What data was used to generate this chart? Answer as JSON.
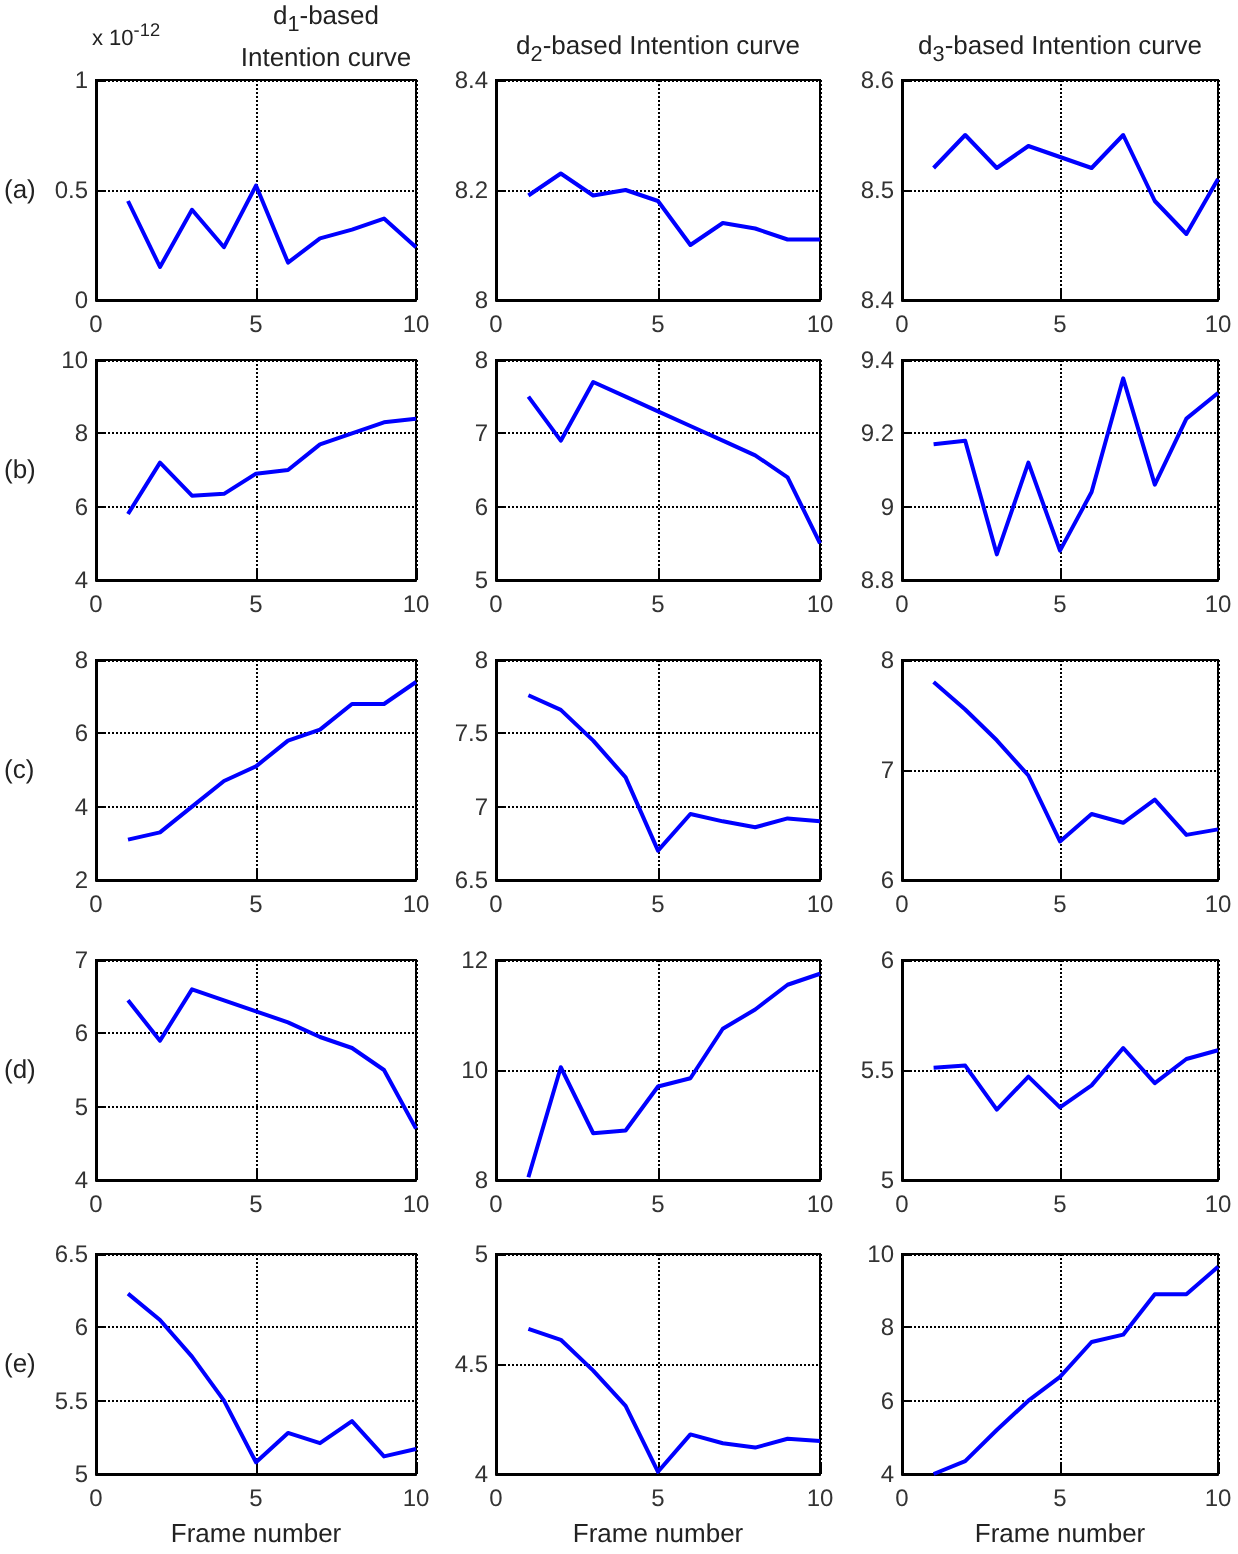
{
  "chart_data": [
    {
      "type": "line",
      "title": "d$_{1}$-based Intention curve",
      "ylabel": "(a)",
      "annotations": [
        "x 10$^{-12}$"
      ],
      "x": [
        1,
        2,
        3,
        4,
        5,
        6,
        7,
        8,
        9,
        10
      ],
      "values": [
        0.45,
        0.15,
        0.41,
        0.24,
        0.52,
        0.17,
        0.28,
        0.32,
        0.37,
        0.24
      ],
      "color": "#0000ff",
      "xlim": [
        0,
        10
      ],
      "xticks": [
        0,
        5,
        10
      ],
      "ylim": [
        0,
        1
      ],
      "yticks": [
        0,
        0.5,
        1
      ],
      "grid": true,
      "marker": "none"
    },
    {
      "type": "line",
      "title": "d$_{2}$-based Intention curve",
      "x": [
        1,
        2,
        3,
        4,
        5,
        6,
        7,
        8,
        9,
        10
      ],
      "values": [
        8.19,
        8.23,
        8.19,
        8.2,
        8.18,
        8.1,
        8.14,
        8.13,
        8.11,
        8.11
      ],
      "color": "#0000ff",
      "xlim": [
        0,
        10
      ],
      "xticks": [
        0,
        5,
        10
      ],
      "ylim": [
        8,
        8.4
      ],
      "yticks": [
        8,
        8.2,
        8.4
      ],
      "grid": true,
      "marker": "none"
    },
    {
      "type": "line",
      "title": "d$_{3}$-based Intention curve",
      "x": [
        1,
        2,
        3,
        4,
        5,
        6,
        7,
        8,
        9,
        10
      ],
      "values": [
        8.52,
        8.55,
        8.52,
        8.54,
        8.53,
        8.52,
        8.55,
        8.49,
        8.46,
        8.51
      ],
      "color": "#0000ff",
      "xlim": [
        0,
        10
      ],
      "xticks": [
        0,
        5,
        10
      ],
      "ylim": [
        8.4,
        8.6
      ],
      "yticks": [
        8.4,
        8.5,
        8.6
      ],
      "grid": true,
      "marker": "none"
    },
    {
      "type": "line",
      "ylabel": "(b)",
      "x": [
        1,
        2,
        3,
        4,
        5,
        6,
        7,
        8,
        9,
        10
      ],
      "values": [
        5.8,
        7.2,
        6.3,
        6.35,
        6.9,
        7.0,
        7.7,
        8.0,
        8.3,
        8.4
      ],
      "color": "#0000ff",
      "xlim": [
        0,
        10
      ],
      "xticks": [
        0,
        5,
        10
      ],
      "ylim": [
        4,
        10
      ],
      "yticks": [
        4,
        6,
        8,
        10
      ],
      "grid": true,
      "marker": "none"
    },
    {
      "type": "line",
      "x": [
        1,
        2,
        3,
        4,
        5,
        6,
        7,
        8,
        9,
        10
      ],
      "values": [
        7.5,
        6.9,
        7.7,
        7.5,
        7.3,
        7.1,
        6.9,
        6.7,
        6.4,
        5.5
      ],
      "color": "#0000ff",
      "xlim": [
        0,
        10
      ],
      "xticks": [
        0,
        5,
        10
      ],
      "ylim": [
        5,
        8
      ],
      "yticks": [
        5,
        6,
        7,
        8
      ],
      "grid": true,
      "marker": "none"
    },
    {
      "type": "line",
      "x": [
        1,
        2,
        3,
        4,
        5,
        6,
        7,
        8,
        9,
        10
      ],
      "values": [
        9.17,
        9.18,
        8.87,
        9.12,
        8.88,
        9.04,
        9.35,
        9.06,
        9.24,
        9.31
      ],
      "color": "#0000ff",
      "xlim": [
        0,
        10
      ],
      "xticks": [
        0,
        5,
        10
      ],
      "ylim": [
        8.8,
        9.4
      ],
      "yticks": [
        8.8,
        9,
        9.2,
        9.4
      ],
      "grid": true,
      "marker": "none"
    },
    {
      "type": "line",
      "ylabel": "(c)",
      "x": [
        1,
        2,
        3,
        4,
        5,
        6,
        7,
        8,
        9,
        10
      ],
      "values": [
        3.1,
        3.3,
        4.0,
        4.7,
        5.1,
        5.8,
        6.1,
        6.8,
        6.8,
        7.4
      ],
      "color": "#0000ff",
      "xlim": [
        0,
        10
      ],
      "xticks": [
        0,
        5,
        10
      ],
      "ylim": [
        2,
        8
      ],
      "yticks": [
        2,
        4,
        6,
        8
      ],
      "grid": true,
      "marker": "none"
    },
    {
      "type": "line",
      "x": [
        1,
        2,
        3,
        4,
        5,
        6,
        7,
        8,
        9,
        10
      ],
      "values": [
        7.76,
        7.66,
        7.45,
        7.2,
        6.7,
        6.95,
        6.9,
        6.86,
        6.92,
        6.9
      ],
      "color": "#0000ff",
      "xlim": [
        0,
        10
      ],
      "xticks": [
        0,
        5,
        10
      ],
      "ylim": [
        6.5,
        8
      ],
      "yticks": [
        6.5,
        7,
        7.5,
        8
      ],
      "grid": true,
      "marker": "none"
    },
    {
      "type": "line",
      "x": [
        1,
        2,
        3,
        4,
        5,
        6,
        7,
        8,
        9,
        10
      ],
      "values": [
        7.8,
        7.55,
        7.27,
        6.95,
        6.35,
        6.6,
        6.52,
        6.73,
        6.41,
        6.46
      ],
      "color": "#0000ff",
      "xlim": [
        0,
        10
      ],
      "xticks": [
        0,
        5,
        10
      ],
      "ylim": [
        6,
        8
      ],
      "yticks": [
        6,
        7,
        8
      ],
      "grid": true,
      "marker": "none"
    },
    {
      "type": "line",
      "ylabel": "(d)",
      "x": [
        1,
        2,
        3,
        4,
        5,
        6,
        7,
        8,
        9,
        10
      ],
      "values": [
        6.45,
        5.9,
        6.6,
        6.45,
        6.3,
        6.15,
        5.95,
        5.8,
        5.5,
        4.7
      ],
      "color": "#0000ff",
      "xlim": [
        0,
        10
      ],
      "xticks": [
        0,
        5,
        10
      ],
      "ylim": [
        4,
        7
      ],
      "yticks": [
        4,
        5,
        6,
        7
      ],
      "grid": true,
      "marker": "none"
    },
    {
      "type": "line",
      "x": [
        1,
        2,
        3,
        4,
        5,
        6,
        7,
        8,
        9,
        10
      ],
      "values": [
        8.05,
        10.05,
        8.85,
        8.9,
        9.7,
        9.85,
        10.75,
        11.1,
        11.55,
        11.75
      ],
      "color": "#0000ff",
      "xlim": [
        0,
        10
      ],
      "xticks": [
        0,
        5,
        10
      ],
      "ylim": [
        8,
        12
      ],
      "yticks": [
        8,
        10,
        12
      ],
      "grid": true,
      "marker": "none"
    },
    {
      "type": "line",
      "x": [
        1,
        2,
        3,
        4,
        5,
        6,
        7,
        8,
        9,
        10
      ],
      "values": [
        5.51,
        5.52,
        5.32,
        5.47,
        5.33,
        5.43,
        5.6,
        5.44,
        5.55,
        5.59
      ],
      "color": "#0000ff",
      "xlim": [
        0,
        10
      ],
      "xticks": [
        0,
        5,
        10
      ],
      "ylim": [
        5,
        6
      ],
      "yticks": [
        5,
        5.5,
        6
      ],
      "grid": true,
      "marker": "none"
    },
    {
      "type": "line",
      "ylabel": "(e)",
      "xlabel": "Frame number",
      "x": [
        1,
        2,
        3,
        4,
        5,
        6,
        7,
        8,
        9,
        10
      ],
      "values": [
        6.23,
        6.05,
        5.8,
        5.5,
        5.08,
        5.28,
        5.21,
        5.36,
        5.12,
        5.17
      ],
      "color": "#0000ff",
      "xlim": [
        0,
        10
      ],
      "xticks": [
        0,
        5,
        10
      ],
      "ylim": [
        5,
        6.5
      ],
      "yticks": [
        5,
        5.5,
        6,
        6.5
      ],
      "grid": true,
      "marker": "none"
    },
    {
      "type": "line",
      "xlabel": "Frame number",
      "x": [
        1,
        2,
        3,
        4,
        5,
        6,
        7,
        8,
        9,
        10
      ],
      "values": [
        4.66,
        4.61,
        4.47,
        4.31,
        4.01,
        4.18,
        4.14,
        4.12,
        4.16,
        4.15
      ],
      "color": "#0000ff",
      "xlim": [
        0,
        10
      ],
      "xticks": [
        0,
        5,
        10
      ],
      "ylim": [
        4,
        5
      ],
      "yticks": [
        4,
        4.5,
        5
      ],
      "grid": true,
      "marker": "none"
    },
    {
      "type": "line",
      "xlabel": "Frame number",
      "x": [
        1,
        2,
        3,
        4,
        5,
        6,
        7,
        8,
        9,
        10
      ],
      "values": [
        4.0,
        4.35,
        5.2,
        6.0,
        6.65,
        7.6,
        7.8,
        8.9,
        8.9,
        9.65
      ],
      "color": "#0000ff",
      "xlim": [
        0,
        10
      ],
      "xticks": [
        0,
        5,
        10
      ],
      "ylim": [
        4,
        10
      ],
      "yticks": [
        4,
        6,
        8,
        10
      ],
      "grid": true,
      "marker": "none"
    }
  ]
}
